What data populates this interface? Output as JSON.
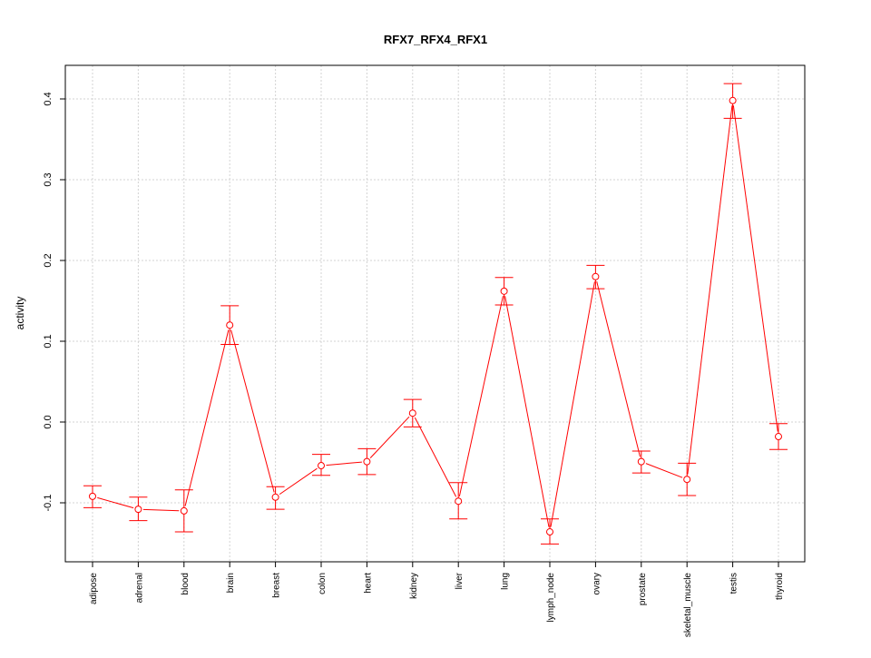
{
  "chart_data": {
    "type": "line",
    "title": "RFX7_RFX4_RFX1",
    "xlabel": "",
    "ylabel": "activity",
    "ylim": [
      -0.173,
      0.44
    ],
    "yticks": [
      -0.1,
      0.0,
      0.1,
      0.2,
      0.3,
      0.4
    ],
    "ytick_labels": [
      "-0.1",
      "0.0",
      "0.1",
      "0.2",
      "0.3",
      "0.4"
    ],
    "grid": true,
    "color": "#ff0000",
    "categories": [
      "adipose",
      "adrenal",
      "blood",
      "brain",
      "breast",
      "colon",
      "heart",
      "kidney",
      "liver",
      "lung",
      "lymph_node",
      "ovary",
      "prostate",
      "skeletal_muscle",
      "testis",
      "thyroid"
    ],
    "values": [
      -0.092,
      -0.108,
      -0.11,
      0.12,
      -0.093,
      -0.054,
      -0.049,
      0.011,
      -0.098,
      0.162,
      -0.136,
      0.18,
      -0.049,
      -0.071,
      0.398,
      -0.018
    ],
    "err_upper": [
      -0.079,
      -0.093,
      -0.084,
      0.144,
      -0.08,
      -0.04,
      -0.033,
      0.028,
      -0.075,
      0.179,
      -0.12,
      0.194,
      -0.036,
      -0.051,
      0.419,
      -0.002
    ],
    "err_lower": [
      -0.106,
      -0.122,
      -0.136,
      0.096,
      -0.108,
      -0.066,
      -0.065,
      -0.006,
      -0.12,
      0.145,
      -0.151,
      0.165,
      -0.063,
      -0.091,
      0.376,
      -0.034
    ]
  }
}
